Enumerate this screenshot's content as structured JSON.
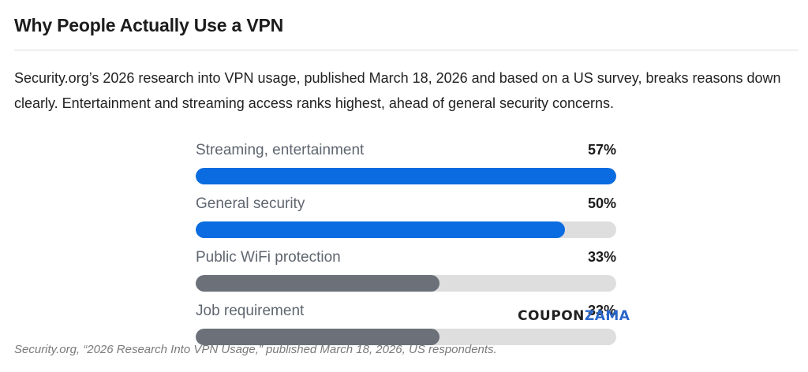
{
  "article": {
    "heading": "Why People Actually Use a VPN",
    "intro": "Security.org’s 2026 research into VPN usage, published March 18, 2026 and based on a US survey, breaks reasons down clearly. Entertainment and streaming access ranks highest, ahead of general security concerns.",
    "source": "Security.org, “2026 Research Into VPN Usage,” published March 18, 2026, US respondents."
  },
  "watermark": {
    "part1": "COUPON",
    "part2": "ZAMA"
  },
  "chart_data": {
    "type": "bar",
    "orientation": "horizontal",
    "categories": [
      "Streaming, entertainment",
      "General security",
      "Public WiFi protection",
      "Job requirement"
    ],
    "values": [
      57,
      50,
      33,
      33
    ],
    "value_labels": [
      "57%",
      "50%",
      "33%",
      "33%"
    ],
    "xlim": [
      0,
      57
    ],
    "colors": [
      "#0a6ce0",
      "#0a6ce0",
      "#6b7079",
      "#6b7079"
    ],
    "track_color": "#dedede",
    "title": "",
    "xlabel": "",
    "ylabel": ""
  }
}
